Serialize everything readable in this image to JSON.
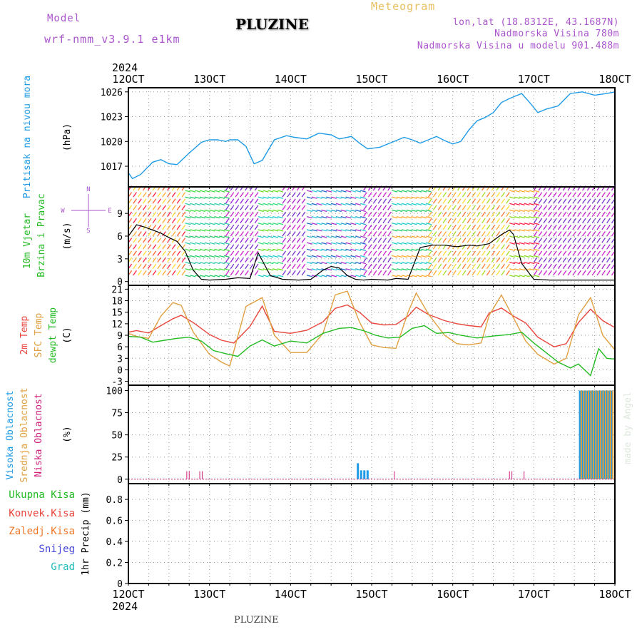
{
  "header": {
    "model_label": "Model",
    "model_name": "wrf-nmm_v3.9.1 e1km",
    "station": "PLUZINE",
    "product": "Meteogram",
    "lonlat": "lon,lat (18.8312E, 43.1687N)",
    "elevation": "Nadmorska Visina 780m",
    "model_elevation": "Nadmorska Visina u modelu 901.488m",
    "credit": "made by Angel",
    "footer_station": "PLUZINE"
  },
  "colors": {
    "pressure": "#1e9be6",
    "temp2m": "#e8453c",
    "sfc_temp": "#e0a040",
    "dewpoint": "#22bb22",
    "visoka": "#1e9be6",
    "srednja": "#e0a040",
    "niska": "#d0207a",
    "wind_label": "#22bb22",
    "wind_speed_line": "#000000",
    "purple_text": "#aa55cc"
  },
  "chart_data": [
    {
      "type": "line",
      "panel": "pressure",
      "ylabel_left": "Pritisak na nivou mora",
      "ylabel_unit": "(hPa)",
      "yticks": [
        "1017",
        "1020",
        "1023",
        "1026"
      ],
      "ylim": [
        1014.5,
        1026.5
      ],
      "xlim": [
        12,
        18
      ],
      "grid": true,
      "series": [
        {
          "name": "Pritisak na nivou mora",
          "x": [
            12.0,
            12.05,
            12.15,
            12.3,
            12.4,
            12.5,
            12.6,
            12.75,
            12.9,
            13.0,
            13.1,
            13.2,
            13.25,
            13.35,
            13.45,
            13.55,
            13.65,
            13.8,
            13.95,
            14.05,
            14.2,
            14.35,
            14.5,
            14.6,
            14.75,
            14.85,
            14.95,
            15.1,
            15.25,
            15.4,
            15.5,
            15.6,
            15.7,
            15.8,
            15.9,
            16.0,
            16.1,
            16.2,
            16.3,
            16.4,
            16.5,
            16.6,
            16.7,
            16.85,
            16.95,
            17.05,
            17.15,
            17.3,
            17.45,
            17.6,
            17.75,
            17.9,
            18.0
          ],
          "values": [
            1016.2,
            1015.5,
            1016.0,
            1017.5,
            1017.8,
            1017.3,
            1017.2,
            1018.6,
            1019.9,
            1020.2,
            1020.2,
            1020.0,
            1020.2,
            1020.2,
            1019.4,
            1017.3,
            1017.7,
            1020.2,
            1020.7,
            1020.5,
            1020.3,
            1021.0,
            1020.8,
            1020.3,
            1020.6,
            1019.8,
            1019.1,
            1019.3,
            1019.9,
            1020.5,
            1020.2,
            1019.8,
            1020.2,
            1020.6,
            1020.1,
            1019.7,
            1020.0,
            1021.4,
            1022.5,
            1022.9,
            1023.5,
            1024.7,
            1025.2,
            1025.8,
            1024.7,
            1023.5,
            1023.9,
            1024.3,
            1025.8,
            1026.0,
            1025.6,
            1025.8,
            1026.0
          ]
        }
      ]
    },
    {
      "type": "line",
      "panel": "wind",
      "ylabel_left": [
        "10m Vjetar",
        "Brzina i Pravac"
      ],
      "ylabel_unit": "(m/s)",
      "compass": [
        "N",
        "W",
        "E",
        "S"
      ],
      "yticks": [
        "0",
        "3",
        "6",
        "9"
      ],
      "ylim": [
        -0.5,
        12.5
      ],
      "xlim": [
        12,
        18
      ],
      "grid": true,
      "series": [
        {
          "name": "10m Vjetar Brzina",
          "x": [
            12.0,
            12.1,
            12.2,
            12.3,
            12.4,
            12.5,
            12.6,
            12.7,
            12.8,
            12.9,
            13.0,
            13.2,
            13.35,
            13.5,
            13.6,
            13.75,
            13.9,
            14.1,
            14.25,
            14.4,
            14.5,
            14.6,
            14.7,
            14.8,
            14.9,
            15.0,
            15.2,
            15.3,
            15.45,
            15.6,
            15.75,
            15.9,
            16.05,
            16.2,
            16.3,
            16.45,
            16.6,
            16.7,
            16.75,
            16.85,
            17.0,
            17.2,
            17.4,
            17.6,
            17.8,
            18.0
          ],
          "values": [
            6.0,
            7.5,
            7.2,
            6.8,
            6.4,
            5.8,
            5.3,
            4.0,
            1.5,
            0.3,
            0.2,
            0.3,
            0.5,
            0.4,
            3.8,
            0.8,
            0.3,
            0.2,
            0.3,
            1.5,
            2.0,
            1.8,
            0.8,
            0.3,
            0.2,
            0.3,
            0.2,
            0.4,
            0.3,
            4.5,
            4.8,
            4.8,
            4.6,
            4.8,
            4.7,
            5.0,
            6.2,
            6.8,
            6.2,
            2.4,
            0.3,
            0.2,
            0.2,
            0.2,
            0.2,
            0.2
          ]
        }
      ]
    },
    {
      "type": "line",
      "panel": "temperature",
      "ylabel_left": [
        "2m Temp",
        "SFC Temp",
        "dewpt Temp"
      ],
      "ylabel_unit": "(C)",
      "yticks": [
        "-3",
        "0",
        "3",
        "6",
        "9",
        "12",
        "15",
        "18",
        "21"
      ],
      "ylim": [
        -4,
        22
      ],
      "xlim": [
        12,
        18
      ],
      "grid": true,
      "series": [
        {
          "name": "2m Temp",
          "x": [
            12.0,
            12.1,
            12.25,
            12.4,
            12.55,
            12.65,
            12.8,
            13.0,
            13.15,
            13.3,
            13.5,
            13.65,
            13.8,
            14.0,
            14.2,
            14.4,
            14.55,
            14.7,
            14.85,
            15.0,
            15.15,
            15.3,
            15.45,
            15.55,
            15.7,
            15.9,
            16.05,
            16.2,
            16.35,
            16.45,
            16.6,
            16.75,
            16.9,
            17.05,
            17.25,
            17.4,
            17.55,
            17.7,
            17.85,
            18.0
          ],
          "values": [
            9.8,
            10.2,
            9.6,
            11.5,
            13.3,
            14.2,
            12.3,
            9.2,
            7.7,
            7.0,
            11.3,
            16.6,
            10.0,
            9.5,
            10.3,
            12.5,
            16.0,
            16.9,
            15.0,
            12.2,
            11.7,
            11.8,
            14.0,
            16.3,
            14.4,
            12.8,
            12.0,
            11.5,
            11.2,
            14.8,
            16.1,
            14.0,
            12.2,
            8.5,
            6.0,
            6.8,
            12.3,
            15.8,
            12.8,
            11.0
          ]
        },
        {
          "name": "SFC Temp",
          "x": [
            12.0,
            12.1,
            12.25,
            12.4,
            12.55,
            12.65,
            12.8,
            13.0,
            13.15,
            13.25,
            13.45,
            13.65,
            13.8,
            14.0,
            14.2,
            14.4,
            14.55,
            14.7,
            14.85,
            15.0,
            15.15,
            15.3,
            15.45,
            15.55,
            15.7,
            15.9,
            16.05,
            16.2,
            16.35,
            16.45,
            16.6,
            16.75,
            16.9,
            17.05,
            17.25,
            17.4,
            17.55,
            17.7,
            17.85,
            18.0
          ],
          "values": [
            9.5,
            8.7,
            8.2,
            14.0,
            17.5,
            16.8,
            9.8,
            4.0,
            2.0,
            1.0,
            16.5,
            18.8,
            9.0,
            4.5,
            4.5,
            9.5,
            19.5,
            20.5,
            12.5,
            6.5,
            5.8,
            5.6,
            15.0,
            20.0,
            14.5,
            9.0,
            6.8,
            6.5,
            7.0,
            14.2,
            19.5,
            13.5,
            7.5,
            4.0,
            1.5,
            3.0,
            14.3,
            18.8,
            9.0,
            5.2
          ]
        },
        {
          "name": "dewpt Temp",
          "x": [
            12.0,
            12.15,
            12.3,
            12.45,
            12.6,
            12.75,
            12.9,
            13.05,
            13.2,
            13.35,
            13.5,
            13.65,
            13.8,
            14.0,
            14.2,
            14.4,
            14.6,
            14.75,
            14.9,
            15.05,
            15.2,
            15.35,
            15.5,
            15.65,
            15.8,
            15.95,
            16.1,
            16.3,
            16.5,
            16.7,
            16.85,
            17.0,
            17.15,
            17.3,
            17.45,
            17.55,
            17.7,
            17.8,
            17.9,
            18.0
          ],
          "values": [
            8.7,
            8.5,
            7.2,
            7.7,
            8.2,
            8.5,
            7.5,
            5.0,
            4.2,
            3.5,
            6.2,
            7.8,
            6.2,
            7.5,
            7.0,
            9.5,
            10.8,
            11.0,
            10.2,
            9.0,
            8.3,
            8.5,
            10.8,
            11.5,
            9.5,
            9.7,
            9.0,
            8.3,
            8.8,
            9.2,
            9.8,
            7.0,
            4.5,
            2.0,
            0.5,
            1.5,
            -1.5,
            5.5,
            3.0,
            2.8
          ]
        }
      ]
    },
    {
      "type": "bar",
      "panel": "cloud",
      "ylabel_left": [
        "Visoka Oblacnost",
        "Srednja Oblacnost",
        "Niska Oblacnost"
      ],
      "ylabel_unit": "(%)",
      "yticks": [
        "0",
        "25",
        "50",
        "75",
        "100"
      ],
      "ylim": [
        -5,
        106
      ],
      "xlim": [
        12,
        18
      ],
      "grid": true,
      "series": [
        {
          "name": "Visoka Oblacnost",
          "x": [
            14.83,
            14.87,
            14.91,
            14.95,
            17.57,
            17.6,
            17.63,
            17.66,
            17.69,
            17.72,
            17.75,
            17.78,
            17.81,
            17.84,
            17.87,
            17.9,
            17.93,
            17.96
          ],
          "values": [
            18,
            10,
            10,
            10,
            100,
            100,
            100,
            100,
            100,
            100,
            100,
            100,
            100,
            100,
            100,
            100,
            100,
            100
          ]
        },
        {
          "name": "Srednja Oblacnost",
          "x": [
            17.585,
            17.615,
            17.645,
            17.675,
            17.705,
            17.735,
            17.765,
            17.795,
            17.825,
            17.855,
            17.885,
            17.915,
            17.945,
            17.975
          ],
          "values": [
            100,
            100,
            100,
            100,
            100,
            100,
            100,
            100,
            100,
            100,
            100,
            100,
            100,
            100
          ]
        },
        {
          "name": "Niska Oblacnost",
          "x": [
            12.72,
            12.75,
            12.88,
            12.91,
            15.28,
            16.7,
            16.73,
            16.88
          ],
          "values": [
            9,
            9,
            9,
            9,
            9,
            9,
            9,
            9
          ]
        }
      ]
    },
    {
      "type": "bar",
      "panel": "precip",
      "ylabel_right": "1hr Precip (mm)",
      "legend": [
        "Ukupna Kisa",
        "Konvek.Kisa",
        "Zaledj.Kisa",
        "Snijeg",
        "Grad"
      ],
      "legend_colors": [
        "#22bb22",
        "#e8453c",
        "#f07828",
        "#4444dd",
        "#22bbbb"
      ],
      "yticks": [
        "0",
        "0.2",
        "0.4",
        "0.6",
        "0.8"
      ],
      "ylim": [
        0,
        0.95
      ],
      "xlim": [
        12,
        18
      ],
      "grid": true,
      "series": []
    }
  ],
  "xaxis": {
    "year": "2024",
    "ticks": [
      "12OCT",
      "13OCT",
      "14OCT",
      "15OCT",
      "16OCT",
      "17OCT",
      "18OCT"
    ]
  }
}
